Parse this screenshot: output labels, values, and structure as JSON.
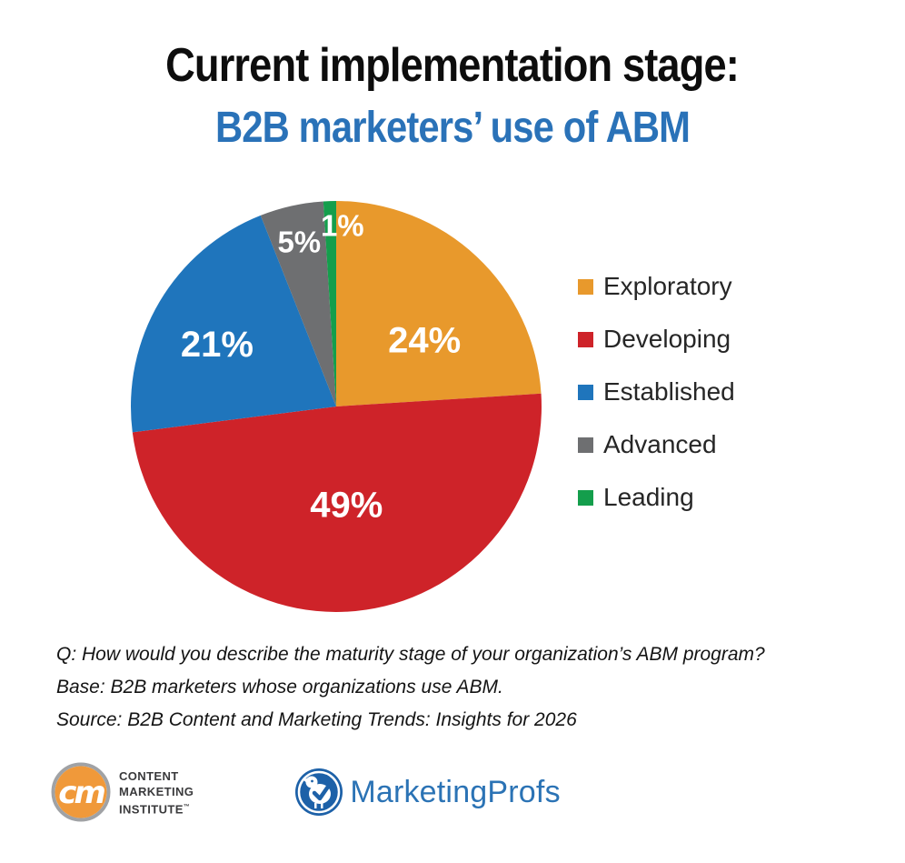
{
  "title": {
    "line1": "Current implementation stage:",
    "line2": "B2B marketers’ use of ABM",
    "line1_color": "#0d0d0d",
    "line2_color": "#2a72b8"
  },
  "chart_data": {
    "type": "pie",
    "title": "Current implementation stage: B2B marketers’ use of ABM",
    "categories": [
      "Exploratory",
      "Developing",
      "Established",
      "Advanced",
      "Leading"
    ],
    "values": [
      24,
      49,
      21,
      5,
      1
    ],
    "labels": [
      "24%",
      "49%",
      "21%",
      "5%",
      "1%"
    ],
    "colors": [
      "#e8992c",
      "#ce2329",
      "#1f75bc",
      "#6e6f71",
      "#149e4c"
    ],
    "label_color": "#ffffff",
    "legend_position": "right",
    "start_angle_deg": 0,
    "direction": "clockwise"
  },
  "footnotes": [
    "Q: How would you describe the maturity stage of your organization’s ABM program?",
    "Base: B2B marketers whose organizations use ABM.",
    "Source: B2B Content and Marketing Trends: Insights for 2026"
  ],
  "logos": {
    "cmi": {
      "monogram": "cm",
      "line1": "CONTENT",
      "line2": "MARKETING",
      "line3": "INSTITUTE",
      "trademark": "™",
      "circle_color": "#f0993a",
      "ring_color": "#a0a2a5",
      "text_color": "#3a3a3c"
    },
    "marketingprofs": {
      "name": "MarketingProfs",
      "circle_color": "#1d61a8",
      "text_color": "#2b73b5"
    }
  }
}
